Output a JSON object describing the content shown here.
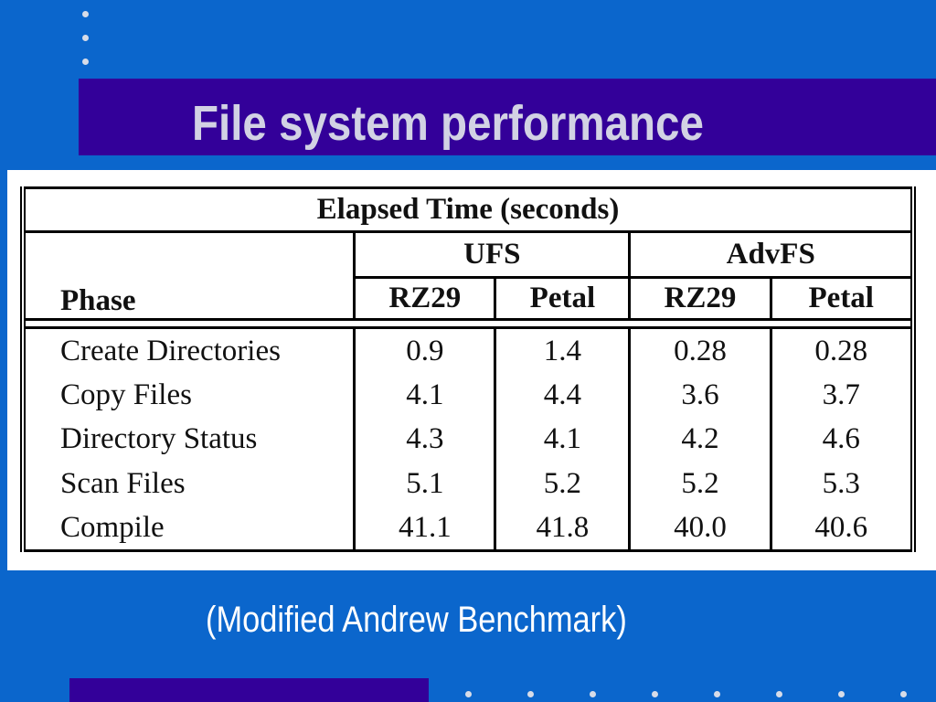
{
  "slide": {
    "title": "File system performance",
    "caption": "(Modified Andrew Benchmark)"
  },
  "table": {
    "title": "Elapsed Time (seconds)",
    "phase_header": "Phase",
    "groups": [
      "UFS",
      "AdvFS"
    ],
    "subheaders": [
      "RZ29",
      "Petal",
      "RZ29",
      "Petal"
    ],
    "rows": [
      {
        "phase": "Create Directories",
        "values": [
          "0.9",
          "1.4",
          "0.28",
          "0.28"
        ]
      },
      {
        "phase": "Copy Files",
        "values": [
          "4.1",
          "4.4",
          "3.6",
          "3.7"
        ]
      },
      {
        "phase": "Directory Status",
        "values": [
          "4.3",
          "4.1",
          "4.2",
          "4.6"
        ]
      },
      {
        "phase": "Scan Files",
        "values": [
          "5.1",
          "5.2",
          "5.2",
          "5.3"
        ]
      },
      {
        "phase": "Compile",
        "values": [
          "41.1",
          "41.8",
          "40.0",
          "40.6"
        ]
      }
    ]
  },
  "colors": {
    "background": "#0b66cc",
    "band": "#330099",
    "title_text": "#d2d2e4",
    "dots": "#d7dce8"
  }
}
